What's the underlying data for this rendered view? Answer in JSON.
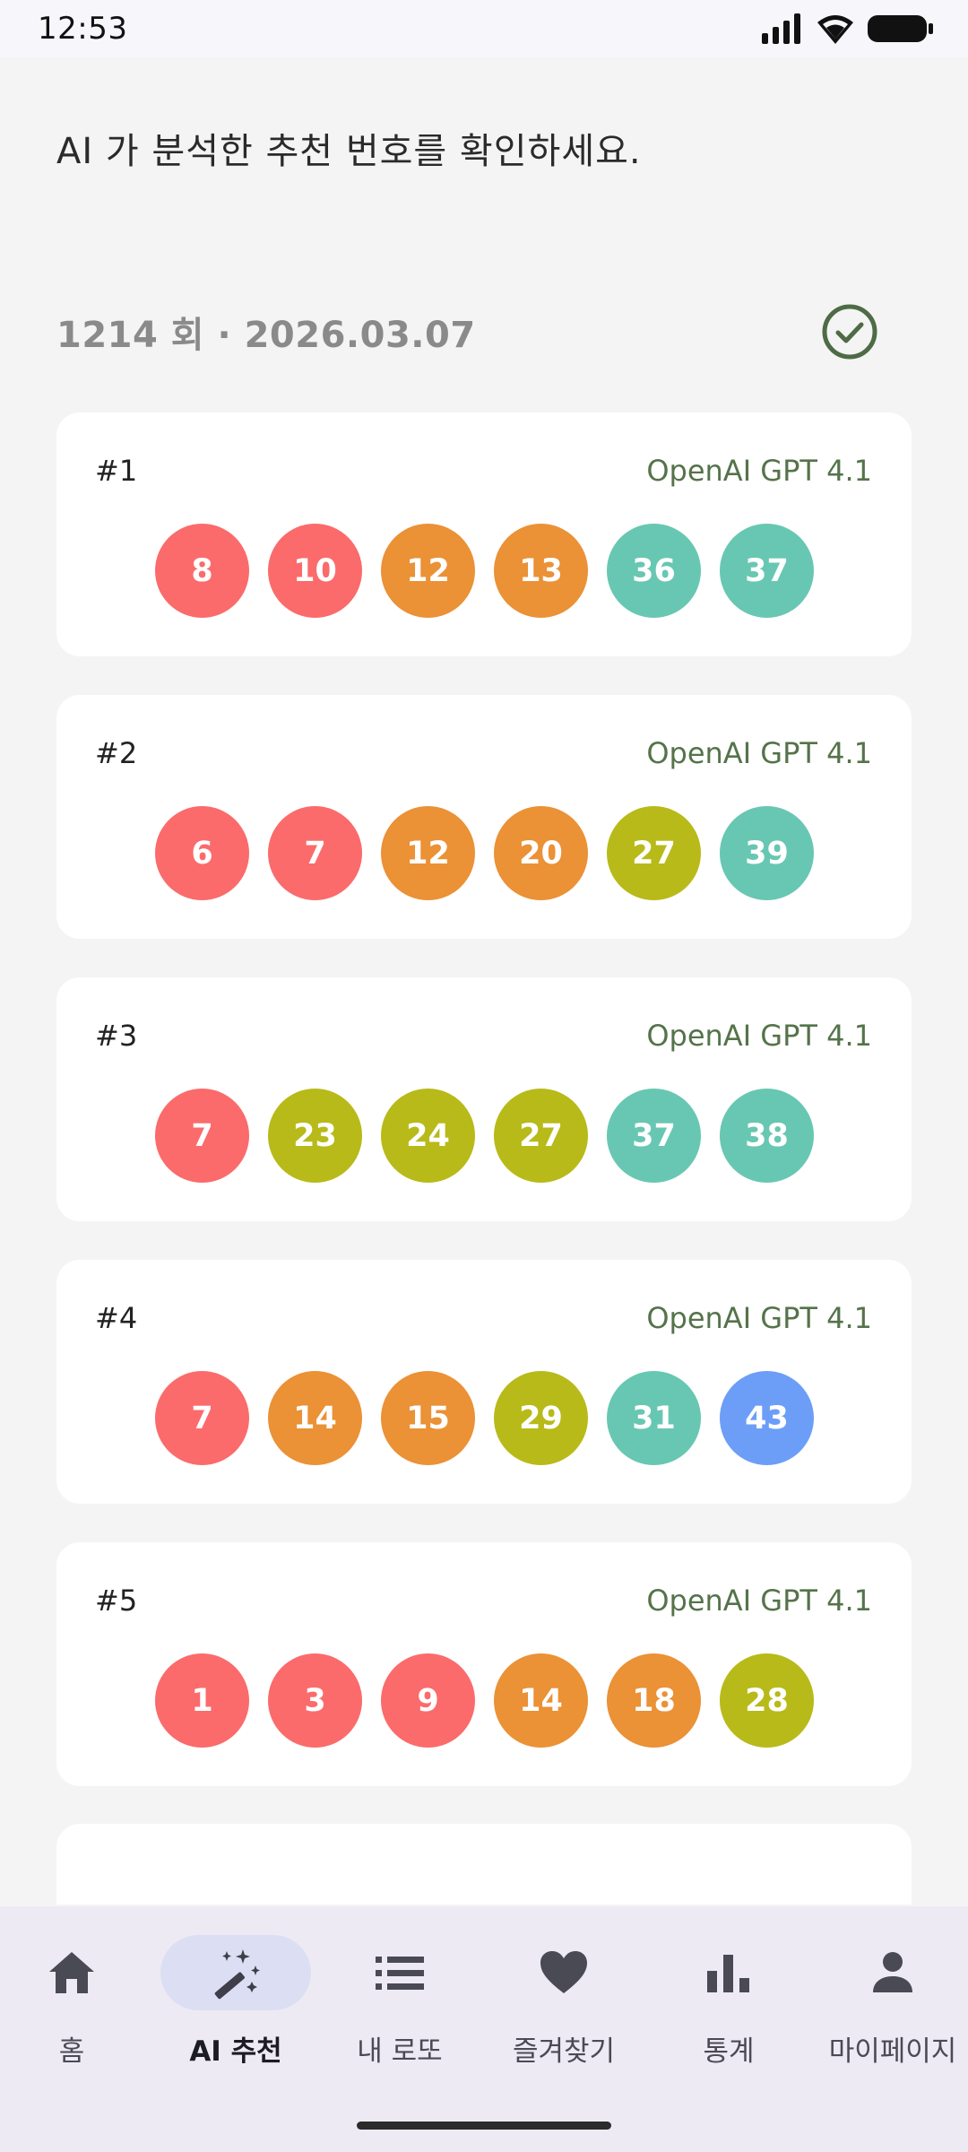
{
  "status": {
    "time": "12:53"
  },
  "header": {
    "subtitle": "AI 가 분석한 추천 번호를 확인하세요."
  },
  "draw": {
    "label": "1214 회 · 2026.03.07"
  },
  "colors": {
    "red": "#fb6b6b",
    "orange": "#eb9136",
    "olive": "#b8ba19",
    "teal": "#68c7b2",
    "blue": "#6c9ef7",
    "model_text": "#55734a",
    "check": "#4e6b45"
  },
  "cards": [
    {
      "index": "#1",
      "model": "OpenAI GPT 4.1",
      "numbers": [
        "8",
        "10",
        "12",
        "13",
        "36",
        "37"
      ]
    },
    {
      "index": "#2",
      "model": "OpenAI GPT 4.1",
      "numbers": [
        "6",
        "7",
        "12",
        "20",
        "27",
        "39"
      ]
    },
    {
      "index": "#3",
      "model": "OpenAI GPT 4.1",
      "numbers": [
        "7",
        "23",
        "24",
        "27",
        "37",
        "38"
      ]
    },
    {
      "index": "#4",
      "model": "OpenAI GPT 4.1",
      "numbers": [
        "7",
        "14",
        "15",
        "29",
        "31",
        "43"
      ]
    },
    {
      "index": "#5",
      "model": "OpenAI GPT 4.1",
      "numbers": [
        "1",
        "3",
        "9",
        "14",
        "18",
        "28"
      ]
    }
  ],
  "nav": {
    "items": [
      {
        "label": "홈",
        "icon": "home-icon"
      },
      {
        "label": "AI 추천",
        "icon": "magic-wand-icon"
      },
      {
        "label": "내 로또",
        "icon": "list-icon"
      },
      {
        "label": "즐겨찾기",
        "icon": "heart-icon"
      },
      {
        "label": "통계",
        "icon": "bar-chart-icon"
      },
      {
        "label": "마이페이지",
        "icon": "person-icon"
      }
    ],
    "active": "AI 추천"
  }
}
